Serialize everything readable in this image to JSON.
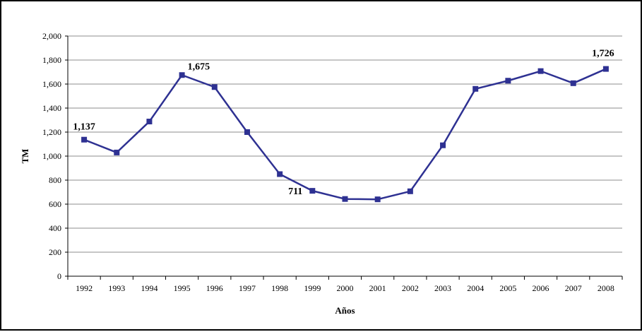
{
  "chart_data": {
    "type": "line",
    "title": "",
    "xlabel": "Años",
    "ylabel": "TM",
    "ylim": [
      0,
      2000
    ],
    "yticks": [
      0,
      200,
      400,
      600,
      800,
      1000,
      1200,
      1400,
      1600,
      1800,
      2000
    ],
    "ytick_labels": [
      "0",
      "200",
      "400",
      "600",
      "800",
      "1,000",
      "1,200",
      "1,400",
      "1,600",
      "1,800",
      "2,000"
    ],
    "grid": true,
    "legend": "none",
    "categories": [
      "1992",
      "1993",
      "1994",
      "1995",
      "1996",
      "1997",
      "1998",
      "1999",
      "2000",
      "2001",
      "2002",
      "2003",
      "2004",
      "2005",
      "2006",
      "2007",
      "2008"
    ],
    "series": [
      {
        "color": "#2e3192",
        "values": [
          1137,
          1030,
          1288,
          1675,
          1575,
          1200,
          850,
          711,
          643,
          640,
          707,
          1090,
          1560,
          1628,
          1708,
          1607,
          1726
        ]
      }
    ],
    "annotations": [
      {
        "index": 0,
        "text": "1,137",
        "placement": "above"
      },
      {
        "index": 3,
        "text": "1,675",
        "placement": "above-right"
      },
      {
        "index": 7,
        "text": "711",
        "placement": "left"
      },
      {
        "index": 16,
        "text": "1,726",
        "placement": "above-left"
      }
    ]
  }
}
